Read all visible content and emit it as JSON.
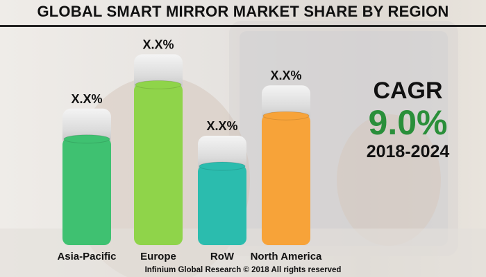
{
  "title": "GLOBAL SMART MIRROR MARKET SHARE BY REGION",
  "cagr": {
    "label": "CAGR",
    "value": "9.0%",
    "period": "2018-2024"
  },
  "footer": "Infinium Global Research © 2018 All rights reserved",
  "colors": {
    "asia_pacific": "#3fc171",
    "europe": "#8fd44a",
    "row": "#2bbcae",
    "north_america": "#f7a339",
    "cagr_value": "#2a8f3a"
  },
  "chart_data": {
    "type": "bar",
    "title": "GLOBAL SMART MIRROR MARKET SHARE BY REGION",
    "categories": [
      "Asia-Pacific",
      "Europe",
      "RoW",
      "North America"
    ],
    "values": [
      54,
      82,
      40,
      66
    ],
    "data_labels": [
      "X.X%",
      "X.X%",
      "X.X%",
      "X.X%"
    ],
    "ylim": [
      0,
      100
    ],
    "xlabel": "",
    "ylabel": "",
    "grid": false,
    "legend": "none"
  }
}
